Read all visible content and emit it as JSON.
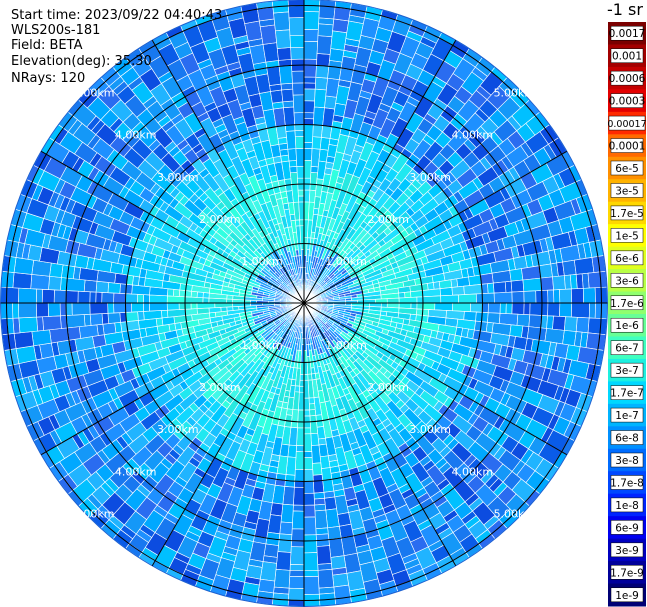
{
  "header": {
    "start_time": "Start time: 2023/09/22 04:40:43",
    "instrument": "WLS200s-181",
    "field": "Field: BETA",
    "elevation": "Elevation(deg): 35.30",
    "nrays": "NRays: 120"
  },
  "colorbar": {
    "units": "-1 sr",
    "labels": [
      "0.0017",
      "0.001",
      "0.0006",
      "0.0003",
      "0.00017",
      "0.0001",
      "6e-5",
      "3e-5",
      "1.7e-5",
      "1e-5",
      "6e-6",
      "3e-6",
      "1.7e-6",
      "1e-6",
      "6e-7",
      "3e-7",
      "1.7e-7",
      "1e-7",
      "6e-8",
      "3e-8",
      "1.7e-8",
      "1e-8",
      "6e-9",
      "3e-9",
      "1.7e-9",
      "1e-9"
    ],
    "colors": [
      "#7a0000",
      "#a30000",
      "#c40000",
      "#e30000",
      "#ff2a00",
      "#ff6a00",
      "#ff9000",
      "#ffb300",
      "#ffd700",
      "#ffff00",
      "#e0ff1e",
      "#b8ff46",
      "#90ff6e",
      "#68ff96",
      "#40ffc0",
      "#1ef0e0",
      "#00d8ff",
      "#00b4ff",
      "#0090ff",
      "#006cff",
      "#0048ff",
      "#0024ff",
      "#0000f0",
      "#0000c0",
      "#00009a",
      "#000075"
    ]
  },
  "chart_data": {
    "type": "heatmap",
    "projection": "polar (PPI scan)",
    "field": "BETA",
    "elevation_deg": 35.3,
    "n_rays": 120,
    "range_rings_km": [
      1.0,
      2.0,
      3.0,
      4.0,
      5.0
    ],
    "range_ring_labels": [
      "1.00km",
      "2.00km",
      "3.00km",
      "4.00km",
      "5.00km"
    ],
    "max_range_km": 5.1,
    "azimuth_spokes_deg": [
      0,
      30,
      60,
      90,
      120,
      150,
      180,
      210,
      240,
      270,
      300,
      330
    ],
    "value_scale": "log",
    "value_range": [
      1e-09,
      0.0017
    ],
    "approx_radial_profile": [
      {
        "range_km": [
          0.0,
          1.0
        ],
        "dominant_value": "1e-8",
        "note": "mixed blue near center"
      },
      {
        "range_km": [
          1.0,
          2.2
        ],
        "dominant_value": "3e-7",
        "note": "cyan/aqua"
      },
      {
        "range_km": [
          2.2,
          3.0
        ],
        "dominant_value": "1e-7",
        "note": "light blue/cyan"
      },
      {
        "range_km": [
          3.0,
          5.1
        ],
        "dominant_value": "6e-8",
        "note": "mixed medium blues"
      }
    ]
  }
}
